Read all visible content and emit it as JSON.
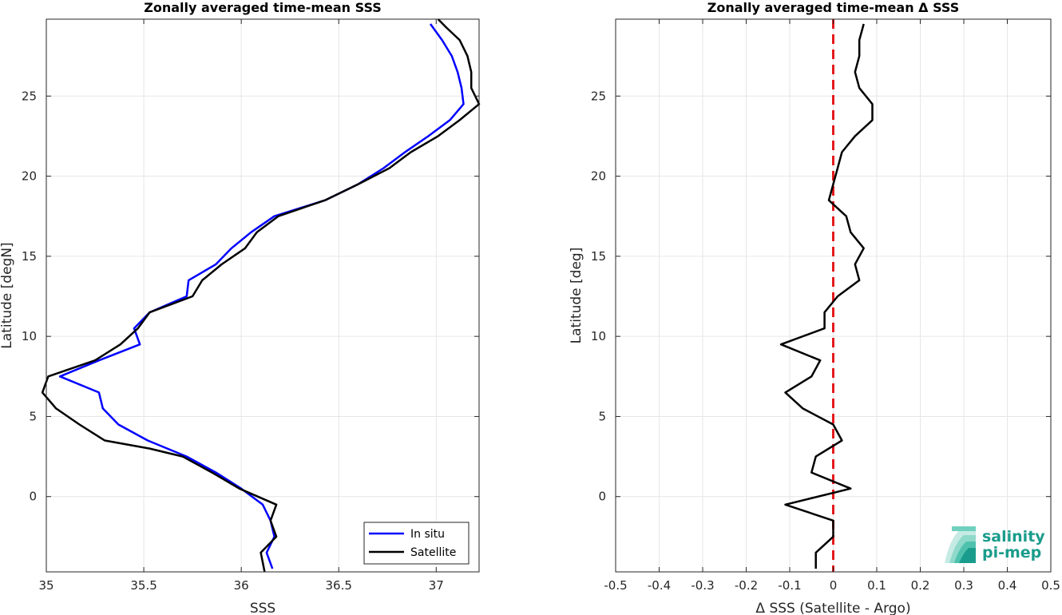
{
  "chart_data": [
    {
      "type": "line",
      "title": "Zonally averaged time-mean SSS",
      "xlabel": "SSS",
      "ylabel": "Latitude [degN]",
      "xlim": [
        35,
        37.22
      ],
      "ylim": [
        -4.7,
        29.8
      ],
      "xticks": [
        35,
        35.5,
        36,
        36.5,
        37
      ],
      "xtick_labels": [
        "35",
        "35.5",
        "36",
        "36.5",
        "37"
      ],
      "yticks": [
        0,
        5,
        10,
        15,
        20,
        25
      ],
      "ytick_labels": [
        "0",
        "5",
        "10",
        "15",
        "20",
        "25"
      ],
      "grid": true,
      "legend": "bottom-right",
      "series": [
        {
          "name": "In situ",
          "color": "#0000ff",
          "points": [
            [
              36.16,
              -4.5
            ],
            [
              36.13,
              -3.5
            ],
            [
              36.17,
              -2.5
            ],
            [
              36.15,
              -1.5
            ],
            [
              36.11,
              -0.5
            ],
            [
              36.0,
              0.5
            ],
            [
              35.87,
              1.5
            ],
            [
              35.72,
              2.5
            ],
            [
              35.52,
              3.5
            ],
            [
              35.37,
              4.5
            ],
            [
              35.29,
              5.5
            ],
            [
              35.27,
              6.5
            ],
            [
              35.07,
              7.5
            ],
            [
              35.27,
              8.5
            ],
            [
              35.48,
              9.5
            ],
            [
              35.45,
              10.5
            ],
            [
              35.53,
              11.5
            ],
            [
              35.72,
              12.5
            ],
            [
              35.73,
              13.5
            ],
            [
              35.87,
              14.5
            ],
            [
              35.95,
              15.5
            ],
            [
              36.05,
              16.5
            ],
            [
              36.17,
              17.5
            ],
            [
              36.43,
              18.5
            ],
            [
              36.6,
              19.5
            ],
            [
              36.73,
              20.5
            ],
            [
              36.84,
              21.5
            ],
            [
              36.96,
              22.5
            ],
            [
              37.07,
              23.5
            ],
            [
              37.14,
              24.5
            ],
            [
              37.13,
              25.5
            ],
            [
              37.11,
              26.5
            ],
            [
              37.08,
              27.5
            ],
            [
              37.03,
              28.5
            ],
            [
              36.97,
              29.5
            ]
          ]
        },
        {
          "name": "Satellite",
          "color": "#000000",
          "points": [
            [
              36.12,
              -4.7
            ],
            [
              36.1,
              -3.5
            ],
            [
              36.18,
              -2.5
            ],
            [
              36.15,
              -1.5
            ],
            [
              36.18,
              -0.5
            ],
            [
              35.99,
              0.5
            ],
            [
              35.85,
              1.5
            ],
            [
              35.7,
              2.5
            ],
            [
              35.53,
              3.0
            ],
            [
              35.3,
              3.5
            ],
            [
              35.17,
              4.5
            ],
            [
              35.05,
              5.5
            ],
            [
              34.98,
              6.5
            ],
            [
              35.01,
              7.5
            ],
            [
              35.25,
              8.5
            ],
            [
              35.38,
              9.5
            ],
            [
              35.47,
              10.5
            ],
            [
              35.53,
              11.5
            ],
            [
              35.75,
              12.5
            ],
            [
              35.8,
              13.5
            ],
            [
              35.9,
              14.5
            ],
            [
              36.02,
              15.5
            ],
            [
              36.08,
              16.5
            ],
            [
              36.19,
              17.5
            ],
            [
              36.43,
              18.5
            ],
            [
              36.6,
              19.5
            ],
            [
              36.76,
              20.5
            ],
            [
              36.87,
              21.5
            ],
            [
              37.01,
              22.5
            ],
            [
              37.12,
              23.5
            ],
            [
              37.22,
              24.5
            ],
            [
              37.18,
              25.5
            ],
            [
              37.18,
              26.5
            ],
            [
              37.16,
              27.5
            ],
            [
              37.12,
              28.5
            ],
            [
              37.05,
              29.3
            ],
            [
              37.01,
              29.8
            ]
          ]
        }
      ]
    },
    {
      "type": "line",
      "title": "Zonally averaged time-mean Δ SSS",
      "xlabel": "Δ SSS (Satellite - Argo)",
      "ylabel": "Latitude [deg]",
      "xlim": [
        -0.5,
        0.5
      ],
      "ylim": [
        -4.7,
        29.8
      ],
      "xticks": [
        -0.5,
        -0.4,
        -0.3,
        -0.2,
        -0.1,
        0,
        0.1,
        0.2,
        0.3,
        0.4,
        0.5
      ],
      "xtick_labels": [
        "-0.5",
        "-0.4",
        "-0.3",
        "-0.2",
        "-0.1",
        "0",
        "0.1",
        "0.2",
        "0.3",
        "0.4",
        "0.5"
      ],
      "yticks": [
        0,
        5,
        10,
        15,
        20,
        25
      ],
      "ytick_labels": [
        "0",
        "5",
        "10",
        "15",
        "20",
        "25"
      ],
      "grid": true,
      "reference_line": {
        "x": 0,
        "color": "#e41a1c",
        "style": "dashed"
      },
      "series": [
        {
          "name": "",
          "color": "#000000",
          "points": [
            [
              -0.04,
              -4.5
            ],
            [
              -0.04,
              -3.5
            ],
            [
              0.0,
              -2.5
            ],
            [
              0.0,
              -1.5
            ],
            [
              -0.11,
              -0.5
            ],
            [
              0.04,
              0.5
            ],
            [
              -0.05,
              1.5
            ],
            [
              -0.04,
              2.5
            ],
            [
              0.02,
              3.5
            ],
            [
              0.0,
              4.5
            ],
            [
              -0.07,
              5.5
            ],
            [
              -0.11,
              6.5
            ],
            [
              -0.05,
              7.5
            ],
            [
              -0.03,
              8.5
            ],
            [
              -0.12,
              9.5
            ],
            [
              -0.02,
              10.5
            ],
            [
              -0.02,
              11.5
            ],
            [
              0.01,
              12.5
            ],
            [
              0.06,
              13.5
            ],
            [
              0.05,
              14.5
            ],
            [
              0.07,
              15.5
            ],
            [
              0.04,
              16.5
            ],
            [
              0.03,
              17.5
            ],
            [
              -0.01,
              18.5
            ],
            [
              0.0,
              19.5
            ],
            [
              0.01,
              20.5
            ],
            [
              0.02,
              21.5
            ],
            [
              0.05,
              22.5
            ],
            [
              0.09,
              23.5
            ],
            [
              0.09,
              24.5
            ],
            [
              0.06,
              25.5
            ],
            [
              0.05,
              26.5
            ],
            [
              0.06,
              27.5
            ],
            [
              0.06,
              28.5
            ],
            [
              0.07,
              29.5
            ]
          ]
        }
      ]
    }
  ],
  "logo": {
    "line1": "salinity",
    "line2": "pi-mep",
    "color": "#1a9c8c"
  }
}
